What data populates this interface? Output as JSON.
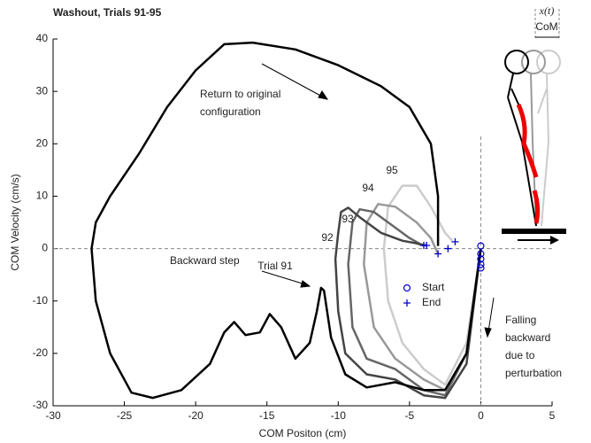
{
  "chart_data": {
    "type": "line",
    "title": "Washout, Trials 91-95",
    "xlabel": "COM Positon (cm)",
    "ylabel": "COM Velocity (cm/s)",
    "xlim": [
      -30,
      5
    ],
    "ylim": [
      -30,
      40
    ],
    "xticks": [
      -30,
      -25,
      -20,
      -15,
      -10,
      -5,
      0,
      5
    ],
    "yticks": [
      -30,
      -20,
      -10,
      0,
      10,
      20,
      30,
      40
    ],
    "zero_lines": true,
    "series": [
      {
        "name": "Trial 91",
        "color": "#000000",
        "x": [
          0,
          -1,
          -2.5,
          -4,
          -6,
          -8,
          -9.5,
          -10.5,
          -11,
          -11.2,
          -11.5,
          -12,
          -13,
          -14,
          -14.8,
          -15.5,
          -16.5,
          -17.3,
          -18,
          -19,
          -21,
          -23,
          -24.5,
          -26,
          -27,
          -27.3,
          -27,
          -26,
          -24,
          -22,
          -20,
          -18,
          -16,
          -13,
          -10,
          -7,
          -5,
          -3.5,
          -3,
          -3,
          -3
        ],
        "y": [
          0,
          -20,
          -27,
          -27,
          -25.5,
          -26.5,
          -24,
          -17,
          -8,
          -7.5,
          -12,
          -18,
          -21,
          -15,
          -12.5,
          -16,
          -16.5,
          -14,
          -16,
          -22,
          -27,
          -28.5,
          -27.5,
          -20,
          -10,
          0,
          5,
          10,
          18,
          27,
          34,
          39,
          39.3,
          38,
          35,
          31,
          27,
          20,
          10,
          2,
          0.5
        ]
      },
      {
        "name": "92",
        "color": "#444444",
        "x": [
          0,
          -1,
          -2.5,
          -4,
          -6,
          -8,
          -9.5,
          -10,
          -10.2,
          -10,
          -9.8,
          -9.3,
          -8.5,
          -7,
          -5.5,
          -4.5,
          -4
        ],
        "y": [
          0,
          -22,
          -28.5,
          -28,
          -25,
          -24,
          -20,
          -12,
          -2,
          3,
          7,
          7.8,
          6,
          3,
          1.5,
          1,
          0.6
        ]
      },
      {
        "name": "93",
        "color": "#666666",
        "x": [
          0,
          -1,
          -2.5,
          -4,
          -6,
          -8,
          -9,
          -9.3,
          -9,
          -8.5,
          -7.5,
          -6,
          -5,
          -4.2,
          -3.8
        ],
        "y": [
          0,
          -20,
          -28,
          -27,
          -23,
          -21,
          -15,
          -3,
          5,
          7.5,
          7,
          4,
          2,
          0.8,
          0.6
        ]
      },
      {
        "name": "94",
        "color": "#999999",
        "x": [
          0,
          -1,
          -2.5,
          -4,
          -6,
          -7.5,
          -8.2,
          -8,
          -7.2,
          -6,
          -4.5,
          -3.5,
          -3
        ],
        "y": [
          0,
          -20,
          -27,
          -25,
          -21,
          -15,
          -3,
          5,
          8.5,
          8,
          5,
          2,
          -1
        ]
      },
      {
        "name": "95",
        "color": "#cccccc",
        "x": [
          0,
          -1,
          -2.5,
          -4,
          -5.5,
          -6.5,
          -6.8,
          -6.5,
          -5.5,
          -4.5,
          -3.5,
          -2.5,
          -2
        ],
        "y": [
          0,
          -18,
          -26,
          -23,
          -18,
          -10,
          0,
          8,
          12,
          12,
          8,
          3,
          1.5
        ]
      }
    ],
    "markers": [
      {
        "name": "Start",
        "color": "#0000cc",
        "x": [
          0,
          0,
          0,
          0,
          0
        ],
        "y": [
          0.5,
          -1,
          -2,
          -3,
          -3.7
        ]
      },
      {
        "name": "End",
        "color": "#0000cc",
        "x": [
          -3,
          -4,
          -3.8,
          -2.3,
          -1.8
        ],
        "y": [
          -1,
          0.6,
          0.6,
          0,
          1.3
        ]
      }
    ],
    "annotations": [
      [
        "Return to original",
        "configuration"
      ],
      [
        "Backward step"
      ],
      [
        "Falling",
        "backward",
        "due to",
        "perturbation"
      ]
    ],
    "inset_labels": [
      "x(t)",
      "CoM"
    ]
  }
}
